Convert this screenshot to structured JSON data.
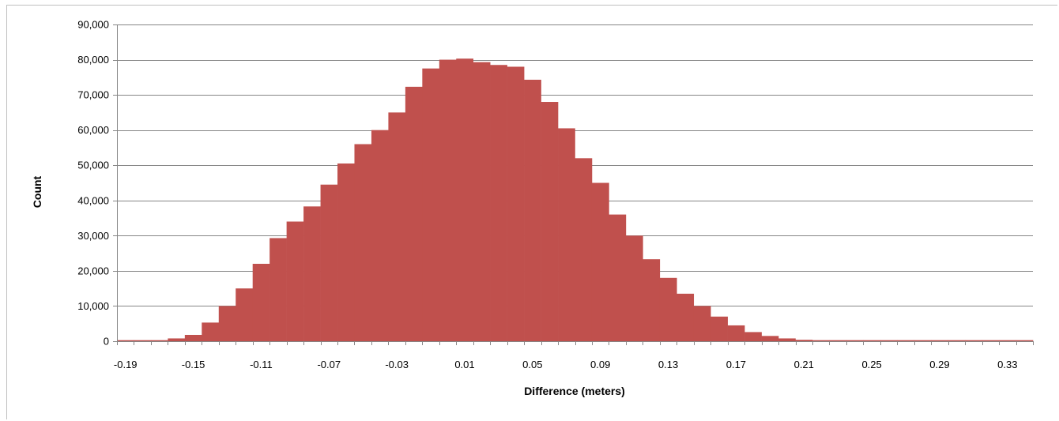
{
  "chart_data": {
    "type": "bar",
    "title": "",
    "xlabel": "Difference (meters)",
    "ylabel": "Count",
    "ylim": [
      0,
      90000
    ],
    "ytick_step": 10000,
    "y_tick_labels": [
      "0",
      "10,000",
      "20,000",
      "30,000",
      "40,000",
      "50,000",
      "60,000",
      "70,000",
      "80,000",
      "90,000"
    ],
    "x_tick_labels": [
      "-0.19",
      "-0.15",
      "-0.11",
      "-0.07",
      "-0.03",
      "0.01",
      "0.05",
      "0.09",
      "0.13",
      "0.17",
      "0.21",
      "0.25",
      "0.29",
      "0.33"
    ],
    "bin_width": 0.01,
    "grid": true,
    "bar_color": "#c0504d",
    "categories": [
      -0.19,
      -0.18,
      -0.17,
      -0.16,
      -0.15,
      -0.14,
      -0.13,
      -0.12,
      -0.11,
      -0.1,
      -0.09,
      -0.08,
      -0.07,
      -0.06,
      -0.05,
      -0.04,
      -0.03,
      -0.02,
      -0.01,
      0.0,
      0.01,
      0.02,
      0.03,
      0.04,
      0.05,
      0.06,
      0.07,
      0.08,
      0.09,
      0.1,
      0.11,
      0.12,
      0.13,
      0.14,
      0.15,
      0.16,
      0.17,
      0.18,
      0.19,
      0.2,
      0.21,
      0.22,
      0.23,
      0.24,
      0.25,
      0.26,
      0.27,
      0.28,
      0.29,
      0.3,
      0.31,
      0.32,
      0.33,
      0.34
    ],
    "values": [
      300,
      300,
      300,
      800,
      1800,
      5300,
      10000,
      15000,
      22000,
      29300,
      34000,
      38300,
      44500,
      50500,
      56000,
      60000,
      65000,
      72300,
      77500,
      80000,
      80300,
      79300,
      78500,
      78000,
      74300,
      68000,
      60500,
      52000,
      45000,
      36000,
      30000,
      23300,
      18000,
      13500,
      10000,
      7000,
      4500,
      2600,
      1500,
      800,
      400,
      300,
      300,
      300,
      300,
      300,
      300,
      300,
      300,
      300,
      300,
      300,
      300,
      300
    ]
  }
}
